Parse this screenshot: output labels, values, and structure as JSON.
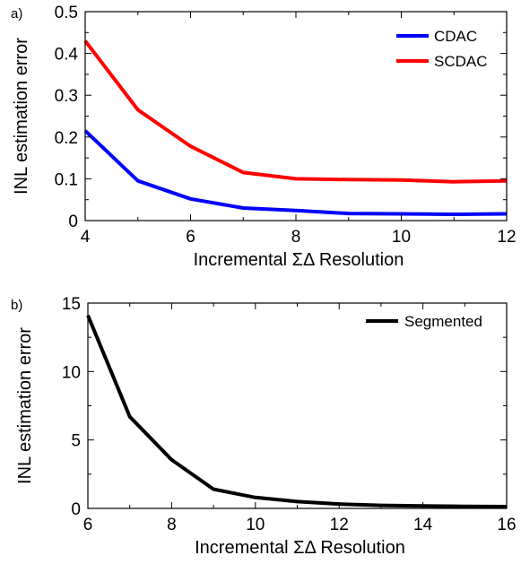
{
  "chart_data": [
    {
      "type": "line",
      "panel_label": "a)",
      "xlabel": "Incremental ΣΔ Resolution",
      "ylabel": "INL estimation error",
      "xlim": [
        4,
        12
      ],
      "ylim": [
        0,
        0.5
      ],
      "xticks": [
        4,
        6,
        8,
        10,
        12
      ],
      "yticks": [
        0,
        0.1,
        0.2,
        0.3,
        0.4,
        0.5
      ],
      "ytick_labels": [
        "0",
        "0.1",
        "0.2",
        "0.3",
        "0.4",
        "0.5"
      ],
      "grid": false,
      "legend_position": "top-right",
      "x": [
        4,
        5,
        6,
        7,
        8,
        9,
        10,
        11,
        12
      ],
      "series": [
        {
          "name": "CDAC",
          "color": "#0000ff",
          "values": [
            0.215,
            0.095,
            0.052,
            0.03,
            0.024,
            0.017,
            0.016,
            0.015,
            0.016
          ]
        },
        {
          "name": "SCDAC",
          "color": "#ff0000",
          "values": [
            0.43,
            0.265,
            0.178,
            0.115,
            0.1,
            0.098,
            0.097,
            0.093,
            0.095
          ]
        }
      ]
    },
    {
      "type": "line",
      "panel_label": "b)",
      "xlabel": "Incremental ΣΔ Resolution",
      "ylabel": "INL estimation error",
      "xlim": [
        6,
        16
      ],
      "ylim": [
        0,
        15
      ],
      "xticks": [
        6,
        8,
        10,
        12,
        14,
        16
      ],
      "yticks": [
        0,
        5,
        10,
        15
      ],
      "ytick_labels": [
        "0",
        "5",
        "10",
        "15"
      ],
      "grid": false,
      "legend_position": "top-right",
      "x": [
        6,
        7,
        8,
        9,
        10,
        11,
        12,
        13,
        14,
        15,
        16
      ],
      "series": [
        {
          "name": "Segmented",
          "color": "#000000",
          "values": [
            14.1,
            6.7,
            3.55,
            1.4,
            0.8,
            0.5,
            0.32,
            0.22,
            0.18,
            0.15,
            0.13
          ]
        }
      ]
    }
  ]
}
